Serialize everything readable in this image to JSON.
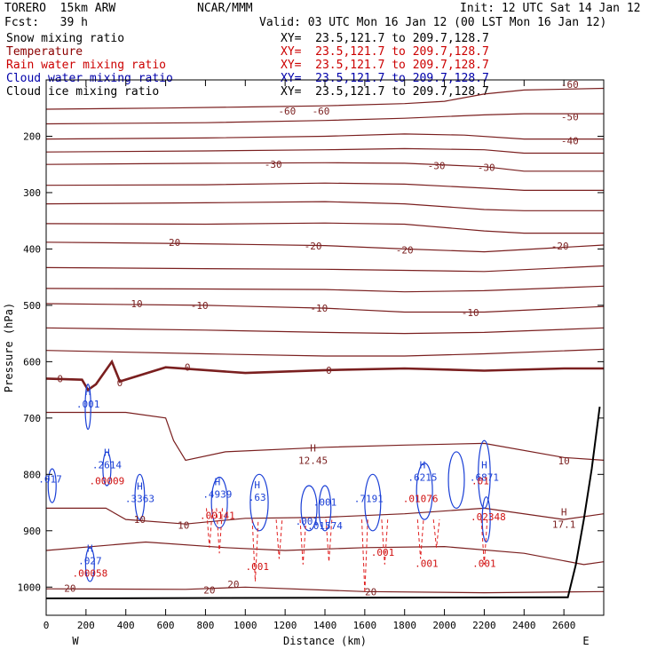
{
  "header": {
    "title_left": "TORERO  15km ARW",
    "title_center": "NCAR/MMM",
    "init": "Init: 12 UTC Sat 14 Jan 12",
    "fcst": "Fcst:   39 h",
    "valid": "Valid: 03 UTC Mon 16 Jan 12 (00 LST Mon 16 Jan 12)"
  },
  "fields": [
    {
      "name": "Snow mixing ratio",
      "xy": "XY=  23.5,121.7 to 209.7,128.7",
      "color": "#000000",
      "xy_color": "#000000"
    },
    {
      "name": "Temperature",
      "xy": "XY=  23.5,121.7 to 209.7,128.7",
      "color": "#8b0000",
      "xy_color": "#cc0000"
    },
    {
      "name": "Rain water mixing ratio",
      "xy": "XY=  23.5,121.7 to 209.7,128.7",
      "color": "#cc0000",
      "xy_color": "#cc0000"
    },
    {
      "name": "Cloud water mixing ratio",
      "xy": "XY=  23.5,121.7 to 209.7,128.7",
      "color": "#0000aa",
      "xy_color": "#0000aa"
    },
    {
      "name": "Cloud ice mixing ratio",
      "xy": "XY=  23.5,121.7 to 209.7,128.7",
      "color": "#000000",
      "xy_color": "#000000"
    }
  ],
  "chart_data": {
    "type": "contour cross-section",
    "xlabel": "Distance (km)",
    "ylabel": "Pressure (hPa)",
    "xlim": [
      0,
      2800
    ],
    "ylim": [
      1050,
      100
    ],
    "x_ticks": [
      0,
      200,
      400,
      600,
      800,
      1000,
      1200,
      1400,
      1600,
      1800,
      2000,
      2200,
      2400,
      2600
    ],
    "y_ticks": [
      200,
      300,
      400,
      500,
      600,
      700,
      800,
      900,
      1000
    ],
    "end_labels": {
      "left": "W",
      "right": "E"
    },
    "temperature_isotherms_labeled": [
      -60,
      -50,
      -40,
      -30,
      -20,
      -10,
      0,
      10,
      20
    ],
    "temperature_label_positions": [
      {
        "x": 1210,
        "p": 155,
        "text": "-60"
      },
      {
        "x": 1380,
        "p": 155,
        "text": "-60"
      },
      {
        "x": 2630,
        "p": 108,
        "text": "-60"
      },
      {
        "x": 2630,
        "p": 165,
        "text": "-50"
      },
      {
        "x": 2630,
        "p": 208,
        "text": "-40"
      },
      {
        "x": 1140,
        "p": 250,
        "text": "-30"
      },
      {
        "x": 1960,
        "p": 252,
        "text": "-30"
      },
      {
        "x": 2210,
        "p": 255,
        "text": "-30"
      },
      {
        "x": 630,
        "p": 388,
        "text": "-20"
      },
      {
        "x": 1340,
        "p": 395,
        "text": "-20"
      },
      {
        "x": 1800,
        "p": 402,
        "text": "-20"
      },
      {
        "x": 2580,
        "p": 395,
        "text": "-20"
      },
      {
        "x": 440,
        "p": 497,
        "text": "-10"
      },
      {
        "x": 770,
        "p": 500,
        "text": "-10"
      },
      {
        "x": 1370,
        "p": 505,
        "text": "-10"
      },
      {
        "x": 2130,
        "p": 513,
        "text": "-10"
      },
      {
        "x": 70,
        "p": 630,
        "text": "0"
      },
      {
        "x": 370,
        "p": 637,
        "text": "0"
      },
      {
        "x": 710,
        "p": 610,
        "text": "0"
      },
      {
        "x": 1420,
        "p": 615,
        "text": "0"
      },
      {
        "x": 2600,
        "p": 776,
        "text": "10"
      },
      {
        "x": 470,
        "p": 880,
        "text": "10"
      },
      {
        "x": 690,
        "p": 890,
        "text": "10"
      },
      {
        "x": 120,
        "p": 1002,
        "text": "20"
      },
      {
        "x": 820,
        "p": 1005,
        "text": "20"
      },
      {
        "x": 940,
        "p": 995,
        "text": "20"
      },
      {
        "x": 1630,
        "p": 1008,
        "text": "20"
      }
    ],
    "maxima": [
      {
        "x": 210,
        "p": 672,
        "label": "H",
        "value": ".001",
        "color": "blue"
      },
      {
        "x": 305,
        "p": 780,
        "label": "H",
        "value": ".2614",
        "color": "blue"
      },
      {
        "x": 305,
        "p": 808,
        "label": "",
        "value": ".00009",
        "color": "red"
      },
      {
        "x": 20,
        "p": 805,
        "label": "",
        "value": ".017",
        "color": "blue"
      },
      {
        "x": 470,
        "p": 840,
        "label": "H",
        "value": ".3363",
        "color": "blue"
      },
      {
        "x": 860,
        "p": 832,
        "label": "H",
        "value": ".4939",
        "color": "blue"
      },
      {
        "x": 860,
        "p": 870,
        "label": "",
        "value": ".00141",
        "color": "red"
      },
      {
        "x": 1060,
        "p": 837,
        "label": "H",
        "value": ".63",
        "color": "blue"
      },
      {
        "x": 1340,
        "p": 772,
        "label": "H",
        "value": "12.45",
        "color": "darkred"
      },
      {
        "x": 1400,
        "p": 846,
        "label": "",
        "value": ".001",
        "color": "blue"
      },
      {
        "x": 1310,
        "p": 880,
        "label": "",
        "value": ".001",
        "color": "blue"
      },
      {
        "x": 1400,
        "p": 888,
        "label": "",
        "value": ".01574",
        "color": "blue"
      },
      {
        "x": 1620,
        "p": 840,
        "label": "",
        "value": ".7191",
        "color": "blue"
      },
      {
        "x": 1690,
        "p": 935,
        "label": "",
        "value": ".001",
        "color": "red"
      },
      {
        "x": 1890,
        "p": 802,
        "label": "H",
        "value": ".6215",
        "color": "blue"
      },
      {
        "x": 1880,
        "p": 840,
        "label": "",
        "value": ".01076",
        "color": "red"
      },
      {
        "x": 2200,
        "p": 802,
        "label": "H",
        "value": ".6871",
        "color": "blue"
      },
      {
        "x": 2180,
        "p": 808,
        "label": "",
        "value": ".01",
        "color": "red"
      },
      {
        "x": 2220,
        "p": 872,
        "label": "",
        "value": ".02348",
        "color": "red"
      },
      {
        "x": 2600,
        "p": 885,
        "label": "H",
        "value": "17.1",
        "color": "darkred"
      },
      {
        "x": 220,
        "p": 950,
        "label": "H",
        "value": ".027",
        "color": "blue"
      },
      {
        "x": 220,
        "p": 972,
        "label": "",
        "value": ".00058",
        "color": "red"
      },
      {
        "x": 1060,
        "p": 960,
        "label": "",
        "value": ".001",
        "color": "red"
      },
      {
        "x": 1910,
        "p": 955,
        "label": "",
        "value": ".001",
        "color": "red"
      },
      {
        "x": 2200,
        "p": 955,
        "label": "",
        "value": ".001",
        "color": "red"
      },
      {
        "x": 220,
        "p": 688,
        "label": "",
        "value": "",
        "color": "blue"
      }
    ],
    "terrain_surface_pressure": [
      {
        "x": 0,
        "p": 1020
      },
      {
        "x": 2620,
        "p": 1018
      },
      {
        "x": 2660,
        "p": 960
      },
      {
        "x": 2700,
        "p": 880
      },
      {
        "x": 2740,
        "p": 790
      },
      {
        "x": 2780,
        "p": 680
      }
    ]
  }
}
